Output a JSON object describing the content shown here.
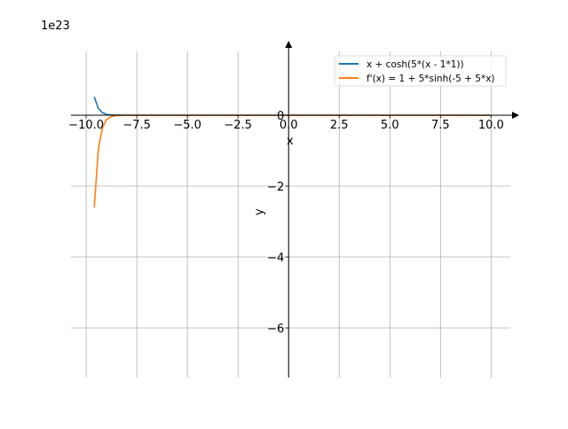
{
  "chart_data": {
    "type": "line",
    "title": "",
    "xlabel": "x",
    "ylabel": "y",
    "offset_label": "1e23",
    "xlim": [
      -10.75,
      10.95
    ],
    "ylim": [
      -7.4,
      1.8
    ],
    "y_unit_multiplier": 1e+23,
    "xticks": [
      -10.0,
      -7.5,
      -5.0,
      -2.5,
      0.0,
      2.5,
      5.0,
      7.5,
      10.0
    ],
    "xtick_labels": [
      "−10.0",
      "−7.5",
      "−5.0",
      "−2.5",
      "0.0",
      "2.5",
      "5.0",
      "7.5",
      "10.0"
    ],
    "yticks": [
      0,
      -2,
      -4,
      -6
    ],
    "ytick_labels": [
      "0",
      "−2",
      "−4",
      "−6"
    ],
    "grid": true,
    "legend_position": "top-right",
    "x": [
      -9.6,
      -9.4,
      -9.2,
      -9.0,
      -8.8,
      -8.6,
      -8.4,
      -8.0,
      -6,
      -4,
      -2,
      0,
      2,
      4,
      6,
      8,
      10
    ],
    "series": [
      {
        "name": "x + cosh(5*(x - 1*1))",
        "color": "#1f77b4",
        "values": [
          0.521,
          0.192,
          0.0705,
          0.0259,
          0.0095,
          0.0035,
          0.0013,
          0.0002,
          0,
          0,
          0,
          0,
          0,
          0,
          0,
          0,
          0.0002
        ]
      },
      {
        "name": "f'(x) = 1 + 5*sinh(-5 + 5*x)",
        "color": "#ff7f0e",
        "values": [
          -2.605,
          -0.958,
          -0.352,
          -0.13,
          -0.048,
          -0.0175,
          -0.0064,
          -0.0009,
          0,
          0,
          0,
          0,
          0,
          0,
          0,
          0,
          0.0009
        ]
      }
    ]
  }
}
